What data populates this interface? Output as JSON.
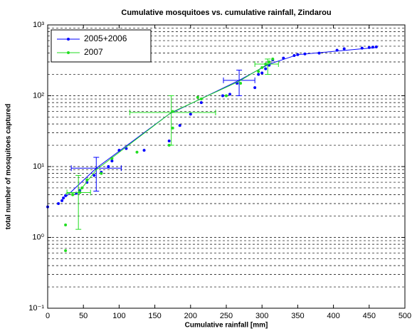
{
  "chart_data": {
    "type": "scatter",
    "title": "Cumulative mosquitoes vs. cumulative rainfall, Zindarou",
    "x_label": "Cumulative rainfall [mm]",
    "y_label": "total number of mosquitoes captured",
    "xlim": [
      0,
      500
    ],
    "xticks": [
      0,
      50,
      100,
      150,
      200,
      250,
      300,
      350,
      400,
      450,
      500
    ],
    "ylim": [
      0.1,
      1000
    ],
    "y_log": true,
    "yticks": [
      {
        "value": 0.1,
        "label": "10⁻¹"
      },
      {
        "value": 1,
        "label": "10⁰"
      },
      {
        "value": 10,
        "label": "10¹"
      },
      {
        "value": 100,
        "label": "10²"
      },
      {
        "value": 1000,
        "label": "10³"
      }
    ],
    "yminorticks": [
      0.2,
      0.3,
      0.4,
      0.5,
      0.6,
      0.7,
      0.8,
      0.9,
      2,
      3,
      4,
      5,
      6,
      7,
      8,
      9,
      20,
      30,
      40,
      50,
      60,
      70,
      80,
      90,
      200,
      300,
      400,
      500,
      600,
      700,
      800,
      900
    ],
    "grid": true,
    "legend": "northwest",
    "series": [
      {
        "name": "2005+2006",
        "color": "#0000ff",
        "x": [
          0,
          15,
          20,
          22,
          25,
          40,
          45,
          55,
          65,
          75,
          85,
          90,
          100,
          110,
          135,
          170,
          185,
          200,
          215,
          245,
          255,
          265,
          290,
          295,
          300,
          305,
          310,
          315,
          330,
          345,
          350,
          360,
          380,
          405,
          415,
          440,
          450,
          455,
          460
        ],
        "values": [
          2.7,
          3,
          3.3,
          3.6,
          3.9,
          4.2,
          4.6,
          6,
          7.5,
          8.3,
          10,
          12,
          17,
          18,
          17,
          23,
          38,
          55,
          80,
          100,
          105,
          150,
          130,
          200,
          210,
          240,
          270,
          320,
          340,
          370,
          380,
          390,
          400,
          440,
          460,
          470,
          480,
          485,
          490
        ],
        "line_x": [
          25,
          68,
          170,
          268,
          310,
          350,
          460
        ],
        "line_y": [
          3.7,
          9.5,
          55,
          165,
          280,
          380,
          480
        ],
        "errorbars": [
          {
            "x": 68,
            "y": 9.5,
            "x_low": 33,
            "x_high": 103,
            "y_low": 4.5,
            "y_high": 13.5
          },
          {
            "x": 268,
            "y": 165,
            "x_low": 246,
            "x_high": 290,
            "y_low": 100,
            "y_high": 230
          }
        ]
      },
      {
        "name": "2007",
        "color": "#22dd22",
        "x": [
          25,
          25,
          35,
          45,
          48,
          55,
          75,
          90,
          125,
          170,
          175,
          175,
          210,
          215,
          250,
          270,
          295,
          300,
          305,
          310,
          315
        ],
        "values": [
          0.65,
          1.5,
          4,
          4.3,
          5,
          6.5,
          8,
          13,
          16,
          20,
          35,
          60,
          95,
          90,
          100,
          150,
          220,
          250,
          280,
          300,
          330
        ],
        "line_x": [
          25,
          43,
          68,
          173,
          268,
          308
        ],
        "line_y": [
          4.2,
          4.3,
          9,
          58,
          160,
          280
        ],
        "errorbars": [
          {
            "x": 43,
            "y": 4.3,
            "x_low": 27,
            "x_high": 60,
            "y_low": 1.3,
            "y_high": 7.5
          },
          {
            "x": 173,
            "y": 58,
            "x_low": 115,
            "x_high": 235,
            "y_low": 20,
            "y_high": 100
          },
          {
            "x": 308,
            "y": 280,
            "x_low": 290,
            "x_high": 323,
            "y_low": 200,
            "y_high": 330
          }
        ]
      }
    ]
  }
}
